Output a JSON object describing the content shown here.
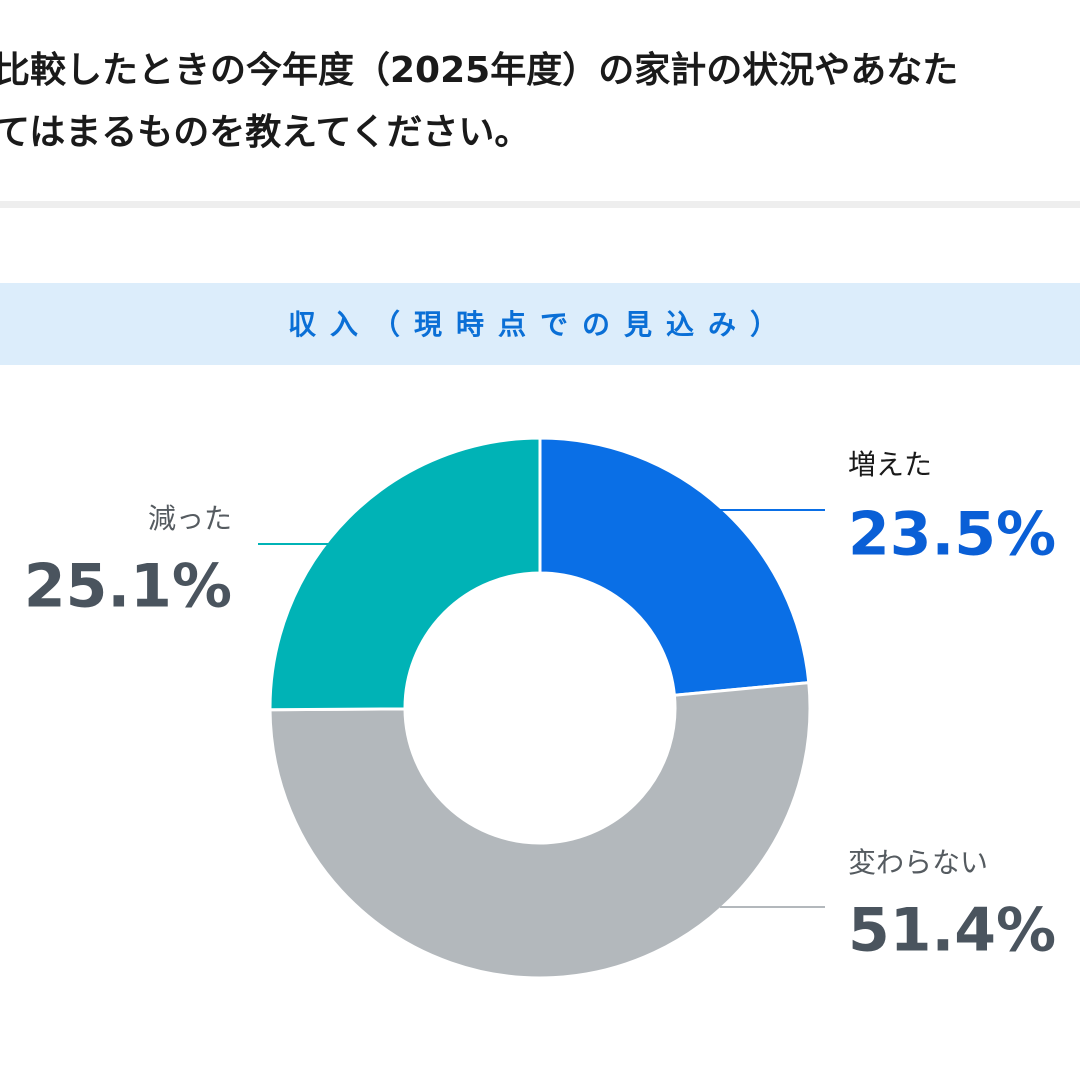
{
  "header": {
    "lines": [
      "比較したときの今年度（2025年度）の家計の状況やあなた",
      "てはまるものを教えてください。"
    ]
  },
  "chart_data": {
    "type": "donut",
    "title": "収入（現時点での見込み）",
    "categories": [
      "増えた",
      "変わらない",
      "減った"
    ],
    "values": [
      23.5,
      51.4,
      25.1
    ],
    "value_labels": [
      "23.5%",
      "51.4%",
      "25.1%"
    ],
    "colors": [
      "#0a6fe6",
      "#b3b8bc",
      "#00b3b6"
    ]
  }
}
